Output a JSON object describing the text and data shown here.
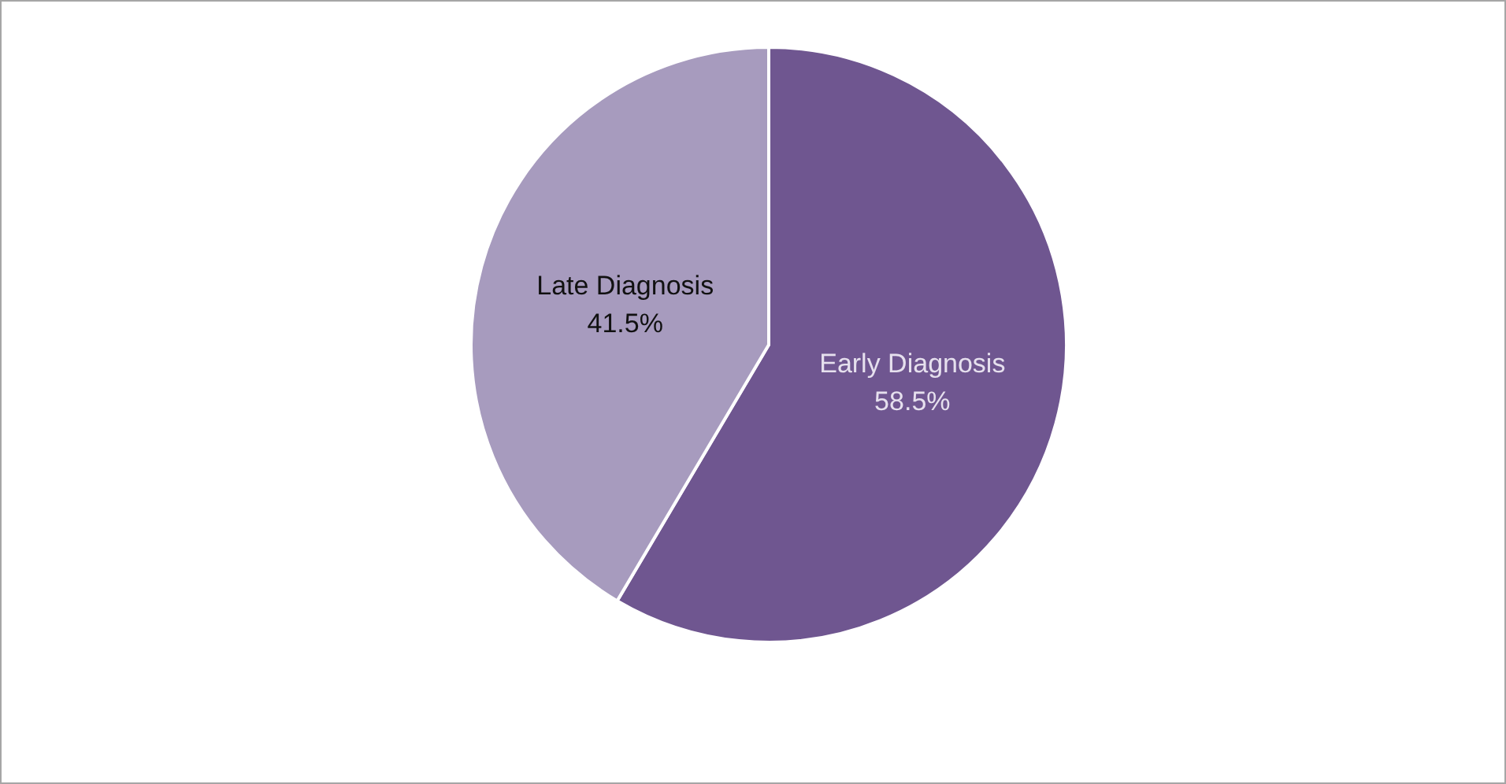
{
  "chart_data": {
    "type": "pie",
    "categories": [
      "Early Diagnosis",
      "Late Diagnosis"
    ],
    "values": [
      58.5,
      41.5
    ],
    "colors": [
      "#6f5690",
      "#a79bbe"
    ],
    "value_labels": [
      "58.5%",
      "41.5%"
    ],
    "legend": false
  }
}
